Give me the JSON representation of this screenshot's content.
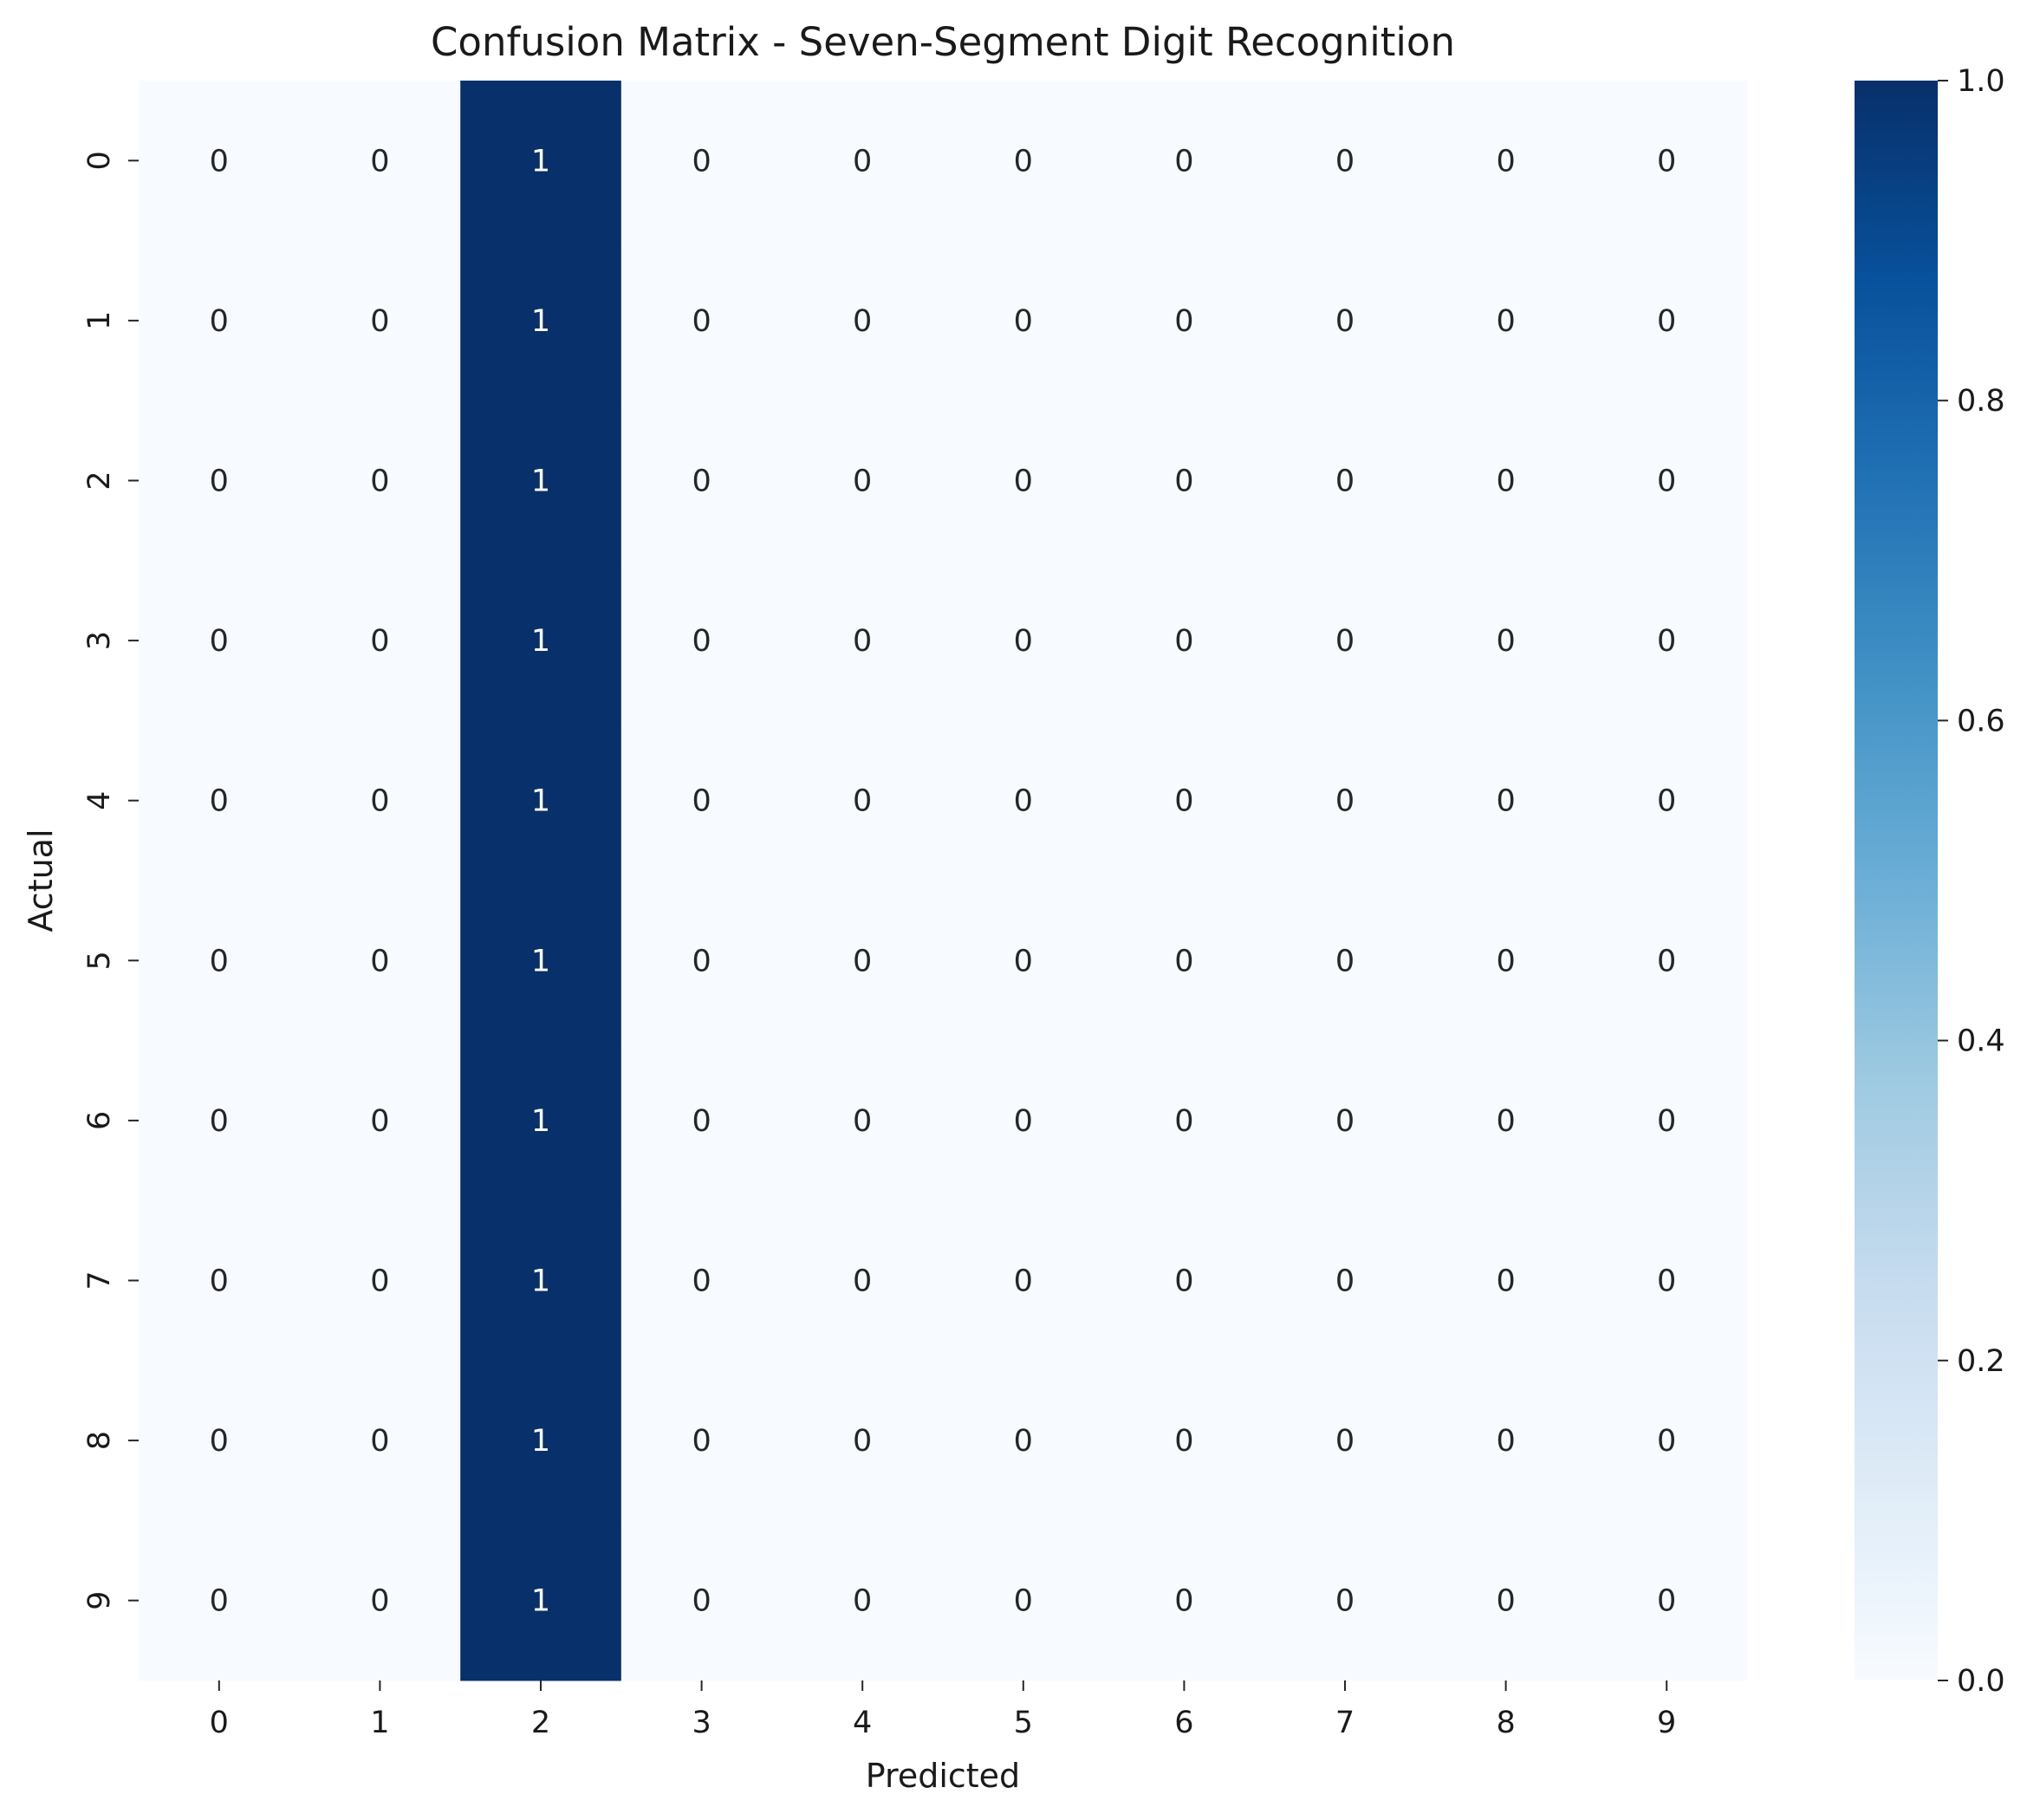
{
  "chart_data": {
    "type": "heatmap",
    "title": "Confusion Matrix - Seven-Segment Digit Recognition",
    "xlabel": "Predicted",
    "ylabel": "Actual",
    "x_categories": [
      "0",
      "1",
      "2",
      "3",
      "4",
      "5",
      "6",
      "7",
      "8",
      "9"
    ],
    "y_categories": [
      "0",
      "1",
      "2",
      "3",
      "4",
      "5",
      "6",
      "7",
      "8",
      "9"
    ],
    "values": [
      [
        0,
        0,
        1,
        0,
        0,
        0,
        0,
        0,
        0,
        0
      ],
      [
        0,
        0,
        1,
        0,
        0,
        0,
        0,
        0,
        0,
        0
      ],
      [
        0,
        0,
        1,
        0,
        0,
        0,
        0,
        0,
        0,
        0
      ],
      [
        0,
        0,
        1,
        0,
        0,
        0,
        0,
        0,
        0,
        0
      ],
      [
        0,
        0,
        1,
        0,
        0,
        0,
        0,
        0,
        0,
        0
      ],
      [
        0,
        0,
        1,
        0,
        0,
        0,
        0,
        0,
        0,
        0
      ],
      [
        0,
        0,
        1,
        0,
        0,
        0,
        0,
        0,
        0,
        0
      ],
      [
        0,
        0,
        1,
        0,
        0,
        0,
        0,
        0,
        0,
        0
      ],
      [
        0,
        0,
        1,
        0,
        0,
        0,
        0,
        0,
        0,
        0
      ],
      [
        0,
        0,
        1,
        0,
        0,
        0,
        0,
        0,
        0,
        0
      ]
    ],
    "annotated": true,
    "colormap": "Blues",
    "colormap_low": "#f7fbff",
    "colormap_high": "#08306b",
    "annotation_dark_color": "#262626",
    "annotation_light_color": "#ffffff",
    "colorbar": {
      "range": [
        0,
        1
      ],
      "ticks": [
        "0.0",
        "0.2",
        "0.4",
        "0.6",
        "0.8",
        "1.0"
      ],
      "tick_values": [
        0,
        0.2,
        0.4,
        0.6,
        0.8,
        1.0
      ]
    },
    "grid": false
  }
}
